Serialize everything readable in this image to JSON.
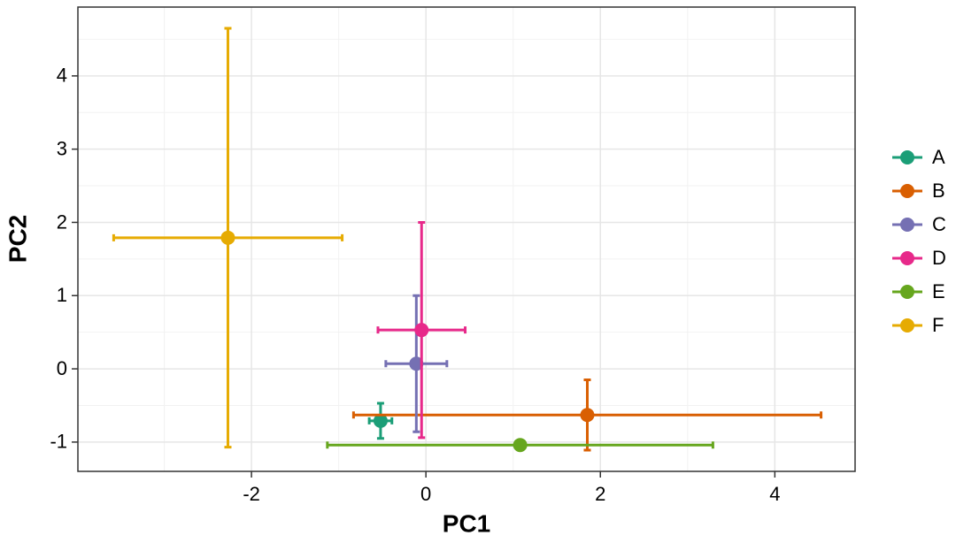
{
  "chart_data": {
    "type": "scatter-errorbar",
    "x_label": "PC1",
    "y_label": "PC2",
    "xlim": [
      -3.99,
      4.92
    ],
    "xticks": [
      -2,
      0,
      2,
      4
    ],
    "ylim": [
      -1.4,
      4.94
    ],
    "yticks": [
      -1,
      0,
      1,
      2,
      3,
      4
    ],
    "grid": true,
    "minor_grid": true,
    "legend_position": "right",
    "series": [
      {
        "name": "A",
        "color": "#1b9e77",
        "x": [
          -0.52
        ],
        "values": [
          -0.71
        ],
        "xerr": [
          0.13
        ],
        "yerr": [
          0.24
        ]
      },
      {
        "name": "B",
        "color": "#d95f02",
        "x": [
          1.85
        ],
        "values": [
          -0.63
        ],
        "xerr": [
          2.68
        ],
        "yerr": [
          0.48
        ]
      },
      {
        "name": "C",
        "color": "#7570b3",
        "x": [
          -0.11
        ],
        "values": [
          0.07
        ],
        "xerr": [
          0.35
        ],
        "yerr": [
          0.93
        ]
      },
      {
        "name": "D",
        "color": "#e7298a",
        "x": [
          -0.05
        ],
        "values": [
          0.53
        ],
        "xerr": [
          0.5
        ],
        "yerr": [
          1.47
        ]
      },
      {
        "name": "E",
        "color": "#66a61e",
        "x": [
          1.08
        ],
        "values": [
          -1.04
        ],
        "xerr": [
          2.21
        ],
        "yerr": [
          0
        ]
      },
      {
        "name": "F",
        "color": "#e6ab02",
        "x": [
          -2.27
        ],
        "values": [
          1.79
        ],
        "xerr": [
          1.31
        ],
        "yerr": [
          2.86
        ]
      }
    ]
  }
}
